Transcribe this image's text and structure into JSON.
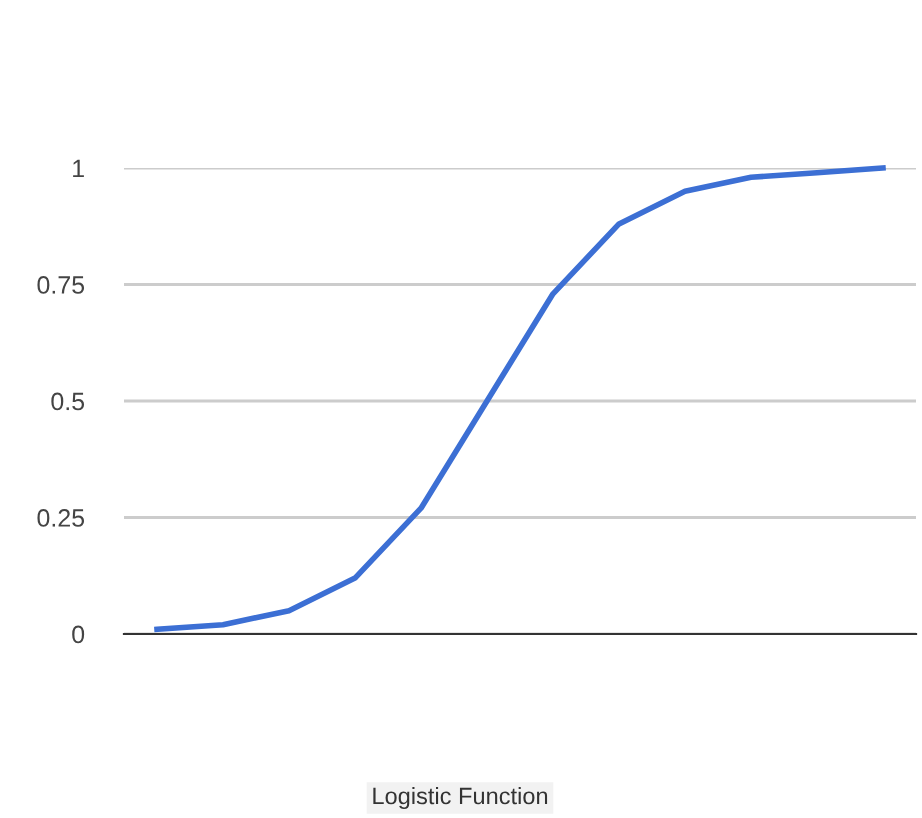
{
  "chart_data": {
    "type": "line",
    "annotations": [
      "Logistic Function"
    ],
    "categories": [
      null,
      null,
      null,
      null,
      null,
      null,
      null,
      null,
      null,
      null,
      null,
      null
    ],
    "series": [
      {
        "color": "#3c6fd4",
        "values": [
          0.01,
          0.02,
          0.05,
          0.12,
          0.27,
          0.5,
          0.73,
          0.88,
          0.95,
          0.98,
          0.99,
          1.0
        ]
      }
    ],
    "ylim": [
      0,
      1
    ],
    "yticks": [
      0,
      0.25,
      0.5,
      0.75,
      1
    ],
    "grid": "y",
    "marker": "none",
    "line_style": "solid"
  }
}
